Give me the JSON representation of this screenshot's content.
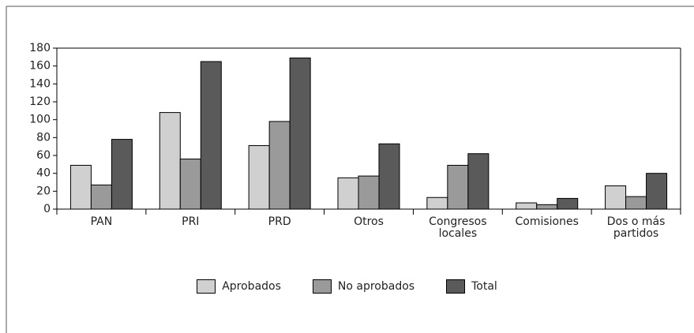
{
  "chart_data": {
    "type": "bar",
    "categories": [
      "PAN",
      "PRI",
      "PRD",
      "Otros",
      "Congresos locales",
      "Comisiones",
      "Dos o más partidos"
    ],
    "series": [
      {
        "name": "Aprobados",
        "color": "#d0d0d0",
        "values": [
          49,
          108,
          71,
          35,
          13,
          7,
          26
        ]
      },
      {
        "name": "No aprobados",
        "color": "#9a9a9a",
        "values": [
          27,
          56,
          98,
          37,
          49,
          5,
          14
        ]
      },
      {
        "name": "Total",
        "color": "#5a5a5a",
        "values": [
          78,
          165,
          169,
          73,
          62,
          12,
          40
        ]
      }
    ],
    "ylim": [
      0,
      180
    ],
    "yticks": [
      0,
      20,
      40,
      60,
      80,
      100,
      120,
      140,
      160,
      180
    ],
    "legend": "bottom"
  }
}
